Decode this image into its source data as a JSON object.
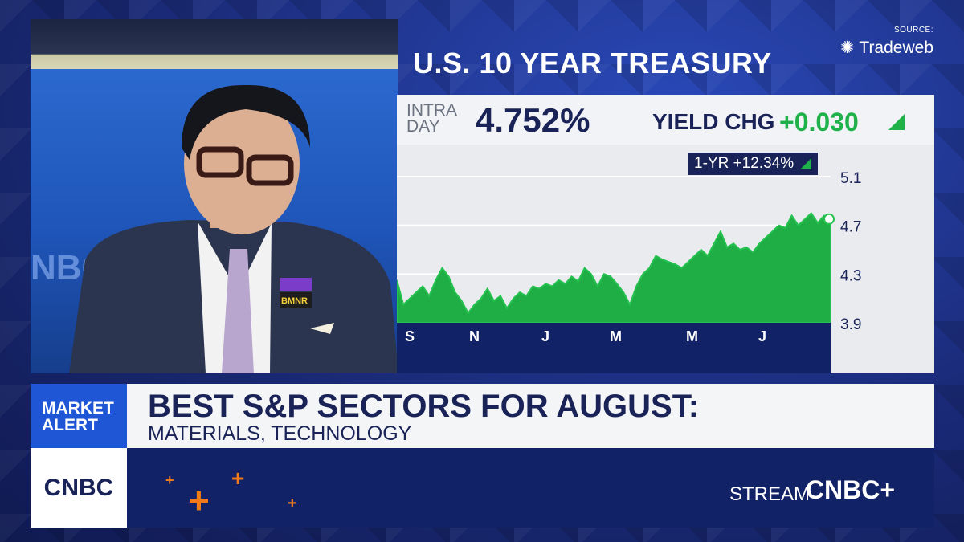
{
  "panel": {
    "title": "U.S. 10 YEAR TREASURY"
  },
  "source": {
    "label": "SOURCE:",
    "brand": "Tradeweb"
  },
  "yield": {
    "intra_label": "INTRA DAY",
    "value": "4.752%",
    "chg_label": "YIELD CHG",
    "chg_value": "+0.030"
  },
  "badge": {
    "text": "1-YR +12.34%"
  },
  "lower_third": {
    "alert": "MARKET ALERT",
    "headline": "BEST S&P SECTORS FOR AUGUST:",
    "subhead": "MATERIALS, TECHNOLOGY",
    "logo": "CNBC",
    "stream": "STREAM",
    "cnbc_plus": "CNBC+"
  },
  "person_pin": {
    "text": "BMNR"
  },
  "colors": {
    "accent_green": "#20b24a",
    "navy": "#1a2357",
    "alert_blue": "#1f56d6",
    "orange": "#f07a1a"
  },
  "chart_data": {
    "type": "area",
    "x_ticks": [
      "S",
      "N",
      "J",
      "M",
      "M",
      "J"
    ],
    "y_ticks": [
      3.9,
      4.3,
      4.7,
      5.1
    ],
    "ylim": [
      3.9,
      5.1
    ],
    "grid": true,
    "values": [
      4.25,
      4.05,
      4.1,
      4.15,
      4.2,
      4.12,
      4.25,
      4.35,
      4.28,
      4.15,
      4.08,
      3.98,
      4.05,
      4.1,
      4.18,
      4.08,
      4.12,
      4.02,
      4.1,
      4.15,
      4.12,
      4.2,
      4.18,
      4.22,
      4.2,
      4.25,
      4.22,
      4.28,
      4.24,
      4.35,
      4.3,
      4.2,
      4.3,
      4.28,
      4.22,
      4.15,
      4.05,
      4.2,
      4.3,
      4.35,
      4.45,
      4.42,
      4.4,
      4.38,
      4.35,
      4.4,
      4.45,
      4.5,
      4.45,
      4.55,
      4.65,
      4.52,
      4.55,
      4.5,
      4.52,
      4.48,
      4.55,
      4.6,
      4.65,
      4.7,
      4.68,
      4.78,
      4.7,
      4.75,
      4.8,
      4.72,
      4.78,
      4.752
    ]
  }
}
